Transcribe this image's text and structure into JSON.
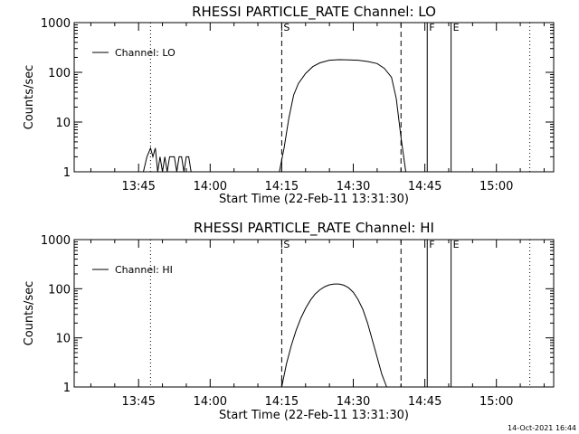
{
  "chart_data": [
    {
      "type": "line",
      "title": "RHESSI PARTICLE_RATE Channel: LO",
      "xlabel": "Start Time (22-Feb-11 13:31:30)",
      "ylabel": "Counts/sec",
      "yscale": "log",
      "ylim": [
        1,
        1000
      ],
      "xlim": [
        "13:31:30",
        "15:12:00"
      ],
      "x_ticks": [
        "13:45",
        "14:00",
        "14:15",
        "14:30",
        "14:45",
        "15:00"
      ],
      "y_ticks": [
        "1",
        "10",
        "100",
        "1000"
      ],
      "legend": "top-left",
      "series": [
        {
          "name": "Channel: LO",
          "x": [
            "13:46:00",
            "13:46:45",
            "13:47:30",
            "13:48:00",
            "13:48:30",
            "13:49:00",
            "13:49:30",
            "13:50:00",
            "13:50:30",
            "13:51:00",
            "13:51:30",
            "13:52:00",
            "13:52:30",
            "13:53:00",
            "13:53:30",
            "13:54:00",
            "13:54:30",
            "13:55:00",
            "13:55:30",
            "13:56:00",
            "14:14:30",
            "14:15:30",
            "14:16:30",
            "14:17:30",
            "14:18:30",
            "14:20:00",
            "14:21:30",
            "14:23:00",
            "14:25:00",
            "14:27:00",
            "14:29:00",
            "14:31:00",
            "14:33:00",
            "14:35:00",
            "14:36:30",
            "14:38:00",
            "14:39:00",
            "14:40:00",
            "14:41:00"
          ],
          "y": [
            1,
            2,
            3,
            2,
            3,
            1,
            2,
            1,
            2,
            1,
            2,
            2,
            2,
            1,
            2,
            2,
            1,
            2,
            2,
            1,
            1,
            3,
            12,
            35,
            60,
            95,
            130,
            155,
            175,
            180,
            178,
            175,
            165,
            150,
            120,
            80,
            30,
            5,
            1
          ]
        }
      ],
      "markers": [
        {
          "time": "13:47:30",
          "style": "dotted",
          "label": ""
        },
        {
          "time": "14:15:00",
          "style": "dashed",
          "label": "S"
        },
        {
          "time": "14:40:00",
          "style": "dashed",
          "label": ""
        },
        {
          "time": "14:45:30",
          "style": "solid",
          "label": "F"
        },
        {
          "time": "14:50:30",
          "style": "solid",
          "label": "E"
        },
        {
          "time": "15:07:00",
          "style": "dotted",
          "label": ""
        }
      ]
    },
    {
      "type": "line",
      "title": "RHESSI PARTICLE_RATE Channel: HI",
      "xlabel": "Start Time (22-Feb-11 13:31:30)",
      "ylabel": "Counts/sec",
      "yscale": "log",
      "ylim": [
        1,
        1000
      ],
      "xlim": [
        "13:31:30",
        "15:12:00"
      ],
      "x_ticks": [
        "13:45",
        "14:00",
        "14:15",
        "14:30",
        "14:45",
        "15:00"
      ],
      "y_ticks": [
        "1",
        "10",
        "100",
        "1000"
      ],
      "legend": "top-left",
      "series": [
        {
          "name": "Channel: HI",
          "x": [
            "14:15:00",
            "14:16:00",
            "14:17:00",
            "14:18:00",
            "14:19:00",
            "14:20:00",
            "14:21:00",
            "14:22:00",
            "14:23:00",
            "14:24:00",
            "14:25:00",
            "14:26:00",
            "14:27:00",
            "14:28:00",
            "14:29:00",
            "14:30:00",
            "14:31:00",
            "14:32:00",
            "14:33:00",
            "14:34:00",
            "14:35:00",
            "14:36:00",
            "14:37:00"
          ],
          "y": [
            1,
            3,
            7,
            14,
            25,
            40,
            58,
            78,
            95,
            110,
            120,
            125,
            125,
            118,
            105,
            85,
            60,
            38,
            20,
            9,
            4,
            1.8,
            1
          ]
        }
      ],
      "markers": [
        {
          "time": "13:47:30",
          "style": "dotted",
          "label": ""
        },
        {
          "time": "14:15:00",
          "style": "dashed",
          "label": "S"
        },
        {
          "time": "14:40:00",
          "style": "dashed",
          "label": ""
        },
        {
          "time": "14:45:30",
          "style": "solid",
          "label": "F"
        },
        {
          "time": "14:50:30",
          "style": "solid",
          "label": "E"
        },
        {
          "time": "15:07:00",
          "style": "dotted",
          "label": ""
        }
      ]
    }
  ],
  "footer": {
    "timestamp": "14-Oct-2021 16:44"
  }
}
